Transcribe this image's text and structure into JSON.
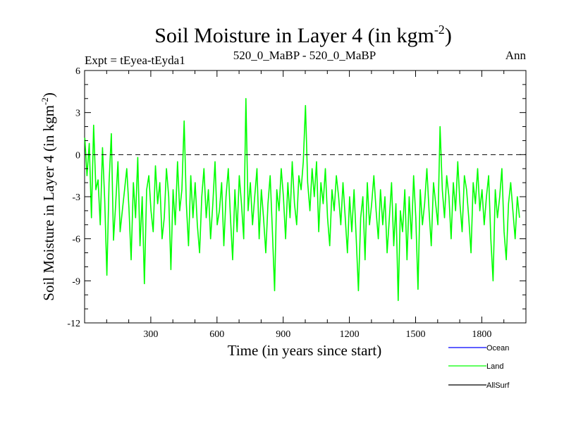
{
  "chart_data": {
    "type": "line",
    "title": "Soil Moisture in Layer 4 (in kgm",
    "title_sup": "-2",
    "title_close": ")",
    "expt_label": "Expt = tEyea-tEyda1",
    "subtitle": "520_0_MaBP - 520_0_MaBP",
    "season_label": "Ann",
    "xlabel": "Time (in years since start)",
    "ylabel": "Soil Moisture in Layer 4 (in kgm",
    "ylabel_sup": "-2",
    "ylabel_close": ")",
    "xlim": [
      0,
      2000
    ],
    "ylim": [
      -12,
      6
    ],
    "xticks": [
      300,
      600,
      900,
      1200,
      1500,
      1800
    ],
    "yticks": [
      6,
      3,
      0,
      -3,
      -6,
      -9,
      -12
    ],
    "reference_line": 0,
    "legend": [
      {
        "name": "Ocean",
        "color": "#0000ff"
      },
      {
        "name": "Land",
        "color": "#00ff00"
      },
      {
        "name": "AllSurf",
        "color": "#000000"
      }
    ],
    "series": [
      {
        "name": "Land",
        "color": "#00ff00",
        "x_start": 1,
        "x_step": 10,
        "values": [
          1.2,
          -1.5,
          0.8,
          -4.5,
          2.1,
          -2.5,
          -1.8,
          -5.0,
          0.5,
          -3.2,
          -8.6,
          -2.0,
          1.5,
          -6.1,
          -3.5,
          -0.5,
          -5.5,
          -4.0,
          -2.5,
          -1.0,
          -3.8,
          -7.5,
          -2.0,
          -4.5,
          -0.2,
          -6.5,
          -3.0,
          -9.2,
          -2.5,
          -1.5,
          -4.0,
          -5.5,
          -0.8,
          -3.5,
          -2.0,
          -6.0,
          -4.5,
          -1.0,
          -3.0,
          -8.2,
          -2.5,
          -5.0,
          -0.5,
          -4.0,
          -2.5,
          2.4,
          -3.5,
          -6.5,
          -1.5,
          -4.5,
          -2.0,
          -5.0,
          -7.0,
          -3.0,
          -1.0,
          -4.5,
          -2.5,
          -6.0,
          -3.5,
          -0.5,
          -5.0,
          -4.0,
          -2.0,
          -6.5,
          -3.0,
          -1.0,
          -4.5,
          -7.5,
          -2.5,
          -5.5,
          -1.5,
          -3.5,
          -6.0,
          4.0,
          -4.0,
          -2.0,
          -5.0,
          -3.0,
          -1.0,
          -6.0,
          -2.5,
          -4.5,
          -7.0,
          -3.5,
          -1.5,
          -5.5,
          -9.7,
          -2.5,
          -4.0,
          -1.0,
          -3.0,
          -6.0,
          -2.0,
          -4.5,
          -0.5,
          -3.5,
          -5.0,
          -1.5,
          -2.5,
          -0.5,
          3.5,
          -2.0,
          -4.0,
          -1.0,
          -3.0,
          -0.5,
          -5.5,
          -2.0,
          -3.5,
          -1.0,
          -4.5,
          -6.5,
          -2.5,
          -4.0,
          -1.5,
          -3.0,
          -5.0,
          -2.0,
          -4.5,
          -7.0,
          -3.0,
          -5.5,
          -2.5,
          -6.0,
          -9.7,
          -4.5,
          -3.0,
          -7.5,
          -2.0,
          -5.0,
          -3.5,
          -1.5,
          -4.0,
          -6.0,
          -2.5,
          -5.0,
          -3.0,
          -7.0,
          -4.5,
          -2.0,
          -6.5,
          -3.5,
          -10.4,
          -4.0,
          -5.5,
          -2.5,
          -7.5,
          -3.0,
          -6.0,
          -1.5,
          -4.5,
          -9.6,
          -2.5,
          -5.0,
          -3.5,
          -1.0,
          -4.0,
          -6.5,
          -2.0,
          -3.5,
          -5.0,
          2.0,
          -2.5,
          -4.5,
          -1.5,
          -3.0,
          -6.0,
          -2.0,
          -4.0,
          -0.5,
          -3.5,
          -5.5,
          -1.5,
          -2.5,
          -4.5,
          -7.0,
          -2.0,
          -3.5,
          -1.0,
          -4.0,
          -2.5,
          -5.0,
          -3.0,
          -1.5,
          -6.0,
          -9.0,
          -2.5,
          -4.5,
          -3.0,
          -1.0,
          -5.5,
          -7.5,
          -3.5,
          -2.0,
          -4.0,
          -6.0,
          -3.0,
          -4.5
        ]
      }
    ]
  }
}
